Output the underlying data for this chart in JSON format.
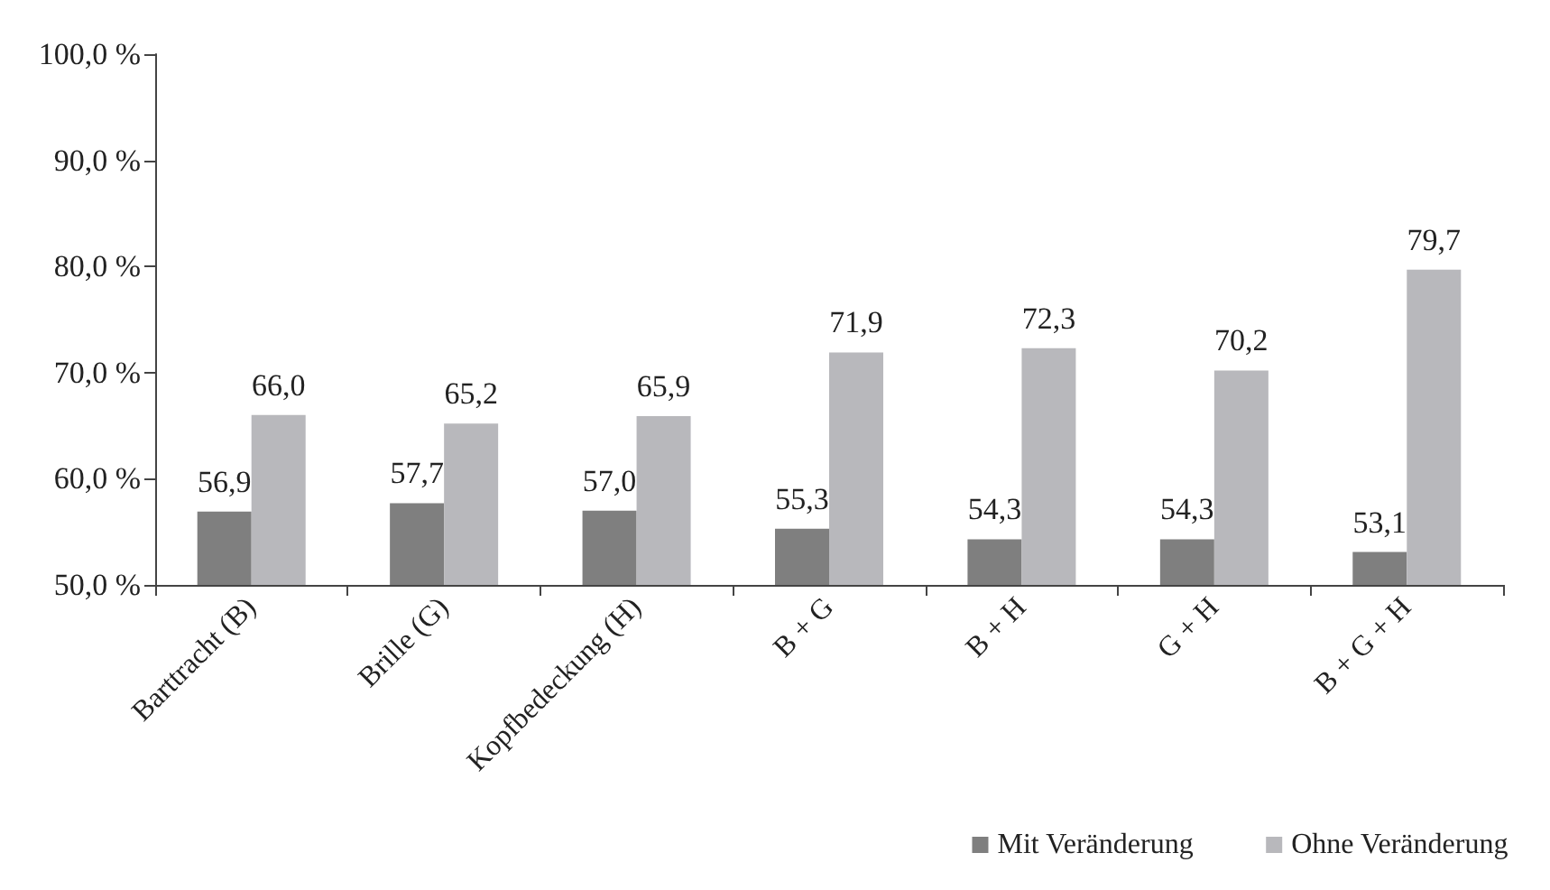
{
  "chart_data": {
    "type": "bar",
    "categories": [
      "Barttracht (B)",
      "Brille (G)",
      "Kopfbedeckung (H)",
      "B + G",
      "B + H",
      "G + H",
      "B + G + H"
    ],
    "series": [
      {
        "name": "Mit Veränderung",
        "color": "#7f7f7f",
        "values": [
          56.9,
          57.7,
          57.0,
          55.3,
          54.3,
          54.3,
          53.1
        ],
        "value_labels": [
          "56,9",
          "57,7",
          "57,0",
          "55,3",
          "54,3",
          "54,3",
          "53,1"
        ]
      },
      {
        "name": "Ohne Veränderung",
        "color": "#b8b8bc",
        "values": [
          66.0,
          65.2,
          65.9,
          71.9,
          72.3,
          70.2,
          79.7
        ],
        "value_labels": [
          "66,0",
          "65,2",
          "65,9",
          "71,9",
          "72,3",
          "70,2",
          "79,7"
        ]
      }
    ],
    "ylim": [
      50,
      100
    ],
    "yticks": [
      {
        "value": 50,
        "label": "50,0 %"
      },
      {
        "value": 60,
        "label": "60,0 %"
      },
      {
        "value": 70,
        "label": "70,0 %"
      },
      {
        "value": 80,
        "label": "80,0 %"
      },
      {
        "value": 90,
        "label": "90,0 %"
      },
      {
        "value": 100,
        "label": "100,0 %"
      }
    ],
    "grid": false,
    "legend": "bottom right"
  }
}
